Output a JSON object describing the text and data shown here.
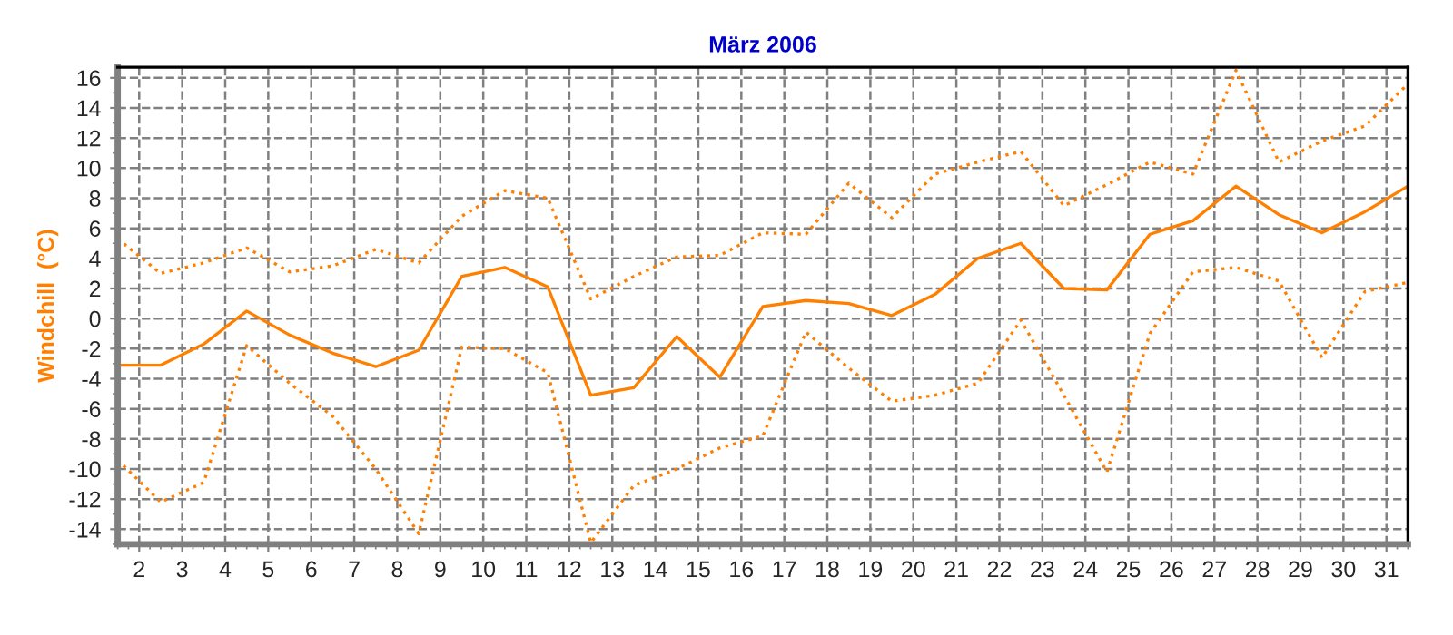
{
  "chart_data": {
    "type": "line",
    "title": "März 2006",
    "ylabel": "Windchill  (°C)",
    "x": [
      1.5,
      2.5,
      3.5,
      4.5,
      5.5,
      6.5,
      7.5,
      8.5,
      9.5,
      10.5,
      11.5,
      12.5,
      13.5,
      14.5,
      15.5,
      16.5,
      17.5,
      18.5,
      19.5,
      20.5,
      21.5,
      22.5,
      23.5,
      24.5,
      25.5,
      26.5,
      27.5,
      28.5,
      29.5,
      30.5,
      31.5
    ],
    "series": [
      {
        "color": "#ff8000",
        "line_style": "dotted",
        "values": [
          5.3,
          3.0,
          3.7,
          4.7,
          3.1,
          3.5,
          4.6,
          3.7,
          6.8,
          8.5,
          8.0,
          1.3,
          2.8,
          4.1,
          4.2,
          5.7,
          5.6,
          9.0,
          6.7,
          9.6,
          10.4,
          11.1,
          7.5,
          8.9,
          10.4,
          9.6,
          16.5,
          10.4,
          11.8,
          12.8,
          15.6
        ]
      },
      {
        "color": "#ff8000",
        "line_style": "solid",
        "values": [
          -3.1,
          -3.1,
          -1.7,
          0.5,
          -1.1,
          -2.3,
          -3.2,
          -2.1,
          2.8,
          3.4,
          2.1,
          -5.1,
          -4.6,
          -1.2,
          -3.9,
          0.8,
          1.2,
          1.0,
          0.2,
          1.6,
          4.0,
          5.0,
          2.0,
          1.9,
          5.6,
          6.5,
          8.8,
          6.9,
          5.7,
          7.1,
          8.8
        ]
      },
      {
        "color": "#ff8000",
        "line_style": "dotted",
        "values": [
          -9.4,
          -12.2,
          -10.9,
          -1.8,
          -4.3,
          -6.5,
          -10.0,
          -14.3,
          -1.9,
          -2.0,
          -3.6,
          -14.9,
          -11.1,
          -10.0,
          -8.6,
          -7.8,
          -0.9,
          -3.3,
          -5.5,
          -5.1,
          -4.3,
          -0.1,
          -5.1,
          -10.2,
          -1.0,
          3.1,
          3.4,
          2.5,
          -2.6,
          1.8,
          2.4
        ]
      }
    ],
    "xlim": [
      1.5,
      31.5
    ],
    "xticks": [
      2,
      3,
      4,
      5,
      6,
      7,
      8,
      9,
      10,
      11,
      12,
      13,
      14,
      15,
      16,
      17,
      18,
      19,
      20,
      21,
      22,
      23,
      24,
      25,
      26,
      27,
      28,
      29,
      30,
      31
    ],
    "ylim": [
      -15,
      16.7
    ],
    "yticks": [
      -14,
      -12,
      -10,
      -8,
      -6,
      -4,
      -2,
      0,
      2,
      4,
      6,
      8,
      10,
      12,
      14,
      16
    ],
    "grid": true
  }
}
